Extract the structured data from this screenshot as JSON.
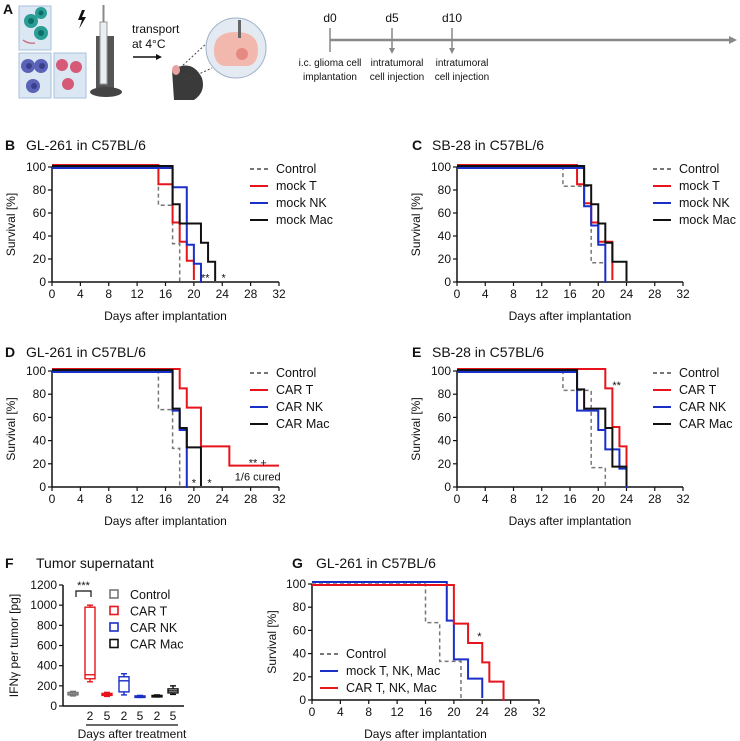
{
  "colors": {
    "control": "#777777",
    "red": "#e8141c",
    "blue": "#1a2ec8",
    "black": "#111111",
    "cellTeal": "#2a9d94",
    "cellBlue": "#5a63b8",
    "cellPink": "#d65a78",
    "brain": "#f2b8ae"
  },
  "panelA": {
    "letter": "A",
    "transport_line1": "transport",
    "transport_line2": "at 4°C",
    "timeline": {
      "days": [
        "d0",
        "d5",
        "d10"
      ],
      "events": [
        [
          "i.c. glioma cell",
          "implantation"
        ],
        [
          "intratumoral",
          "cell injection"
        ],
        [
          "intratumoral",
          "cell injection"
        ]
      ]
    }
  },
  "chart_data": [
    {
      "panel": "B",
      "type": "line",
      "subtype": "kaplan-meier",
      "title": "GL-261 in C57BL/6",
      "xlabel": "Days after implantation",
      "ylabel": "Survival [%]",
      "xlim": [
        0,
        32
      ],
      "ylim": [
        0,
        100
      ],
      "xticks": [
        0,
        4,
        8,
        12,
        16,
        20,
        24,
        28,
        32
      ],
      "yticks": [
        0,
        20,
        40,
        60,
        80,
        100
      ],
      "legend_position": "right",
      "series": [
        {
          "name": "Control",
          "color": "#777777",
          "dashed": true,
          "steps": [
            [
              0,
              100
            ],
            [
              15,
              66.7
            ],
            [
              17,
              33.3
            ],
            [
              18,
              0
            ]
          ]
        },
        {
          "name": "mock T",
          "color": "#e8141c",
          "steps": [
            [
              0,
              100
            ],
            [
              15,
              83.3
            ],
            [
              17,
              50
            ],
            [
              18,
              33.3
            ],
            [
              19,
              16.7
            ],
            [
              20,
              0
            ]
          ]
        },
        {
          "name": "mock NK",
          "color": "#1a2ec8",
          "steps": [
            [
              0,
              100
            ],
            [
              17,
              83.3
            ],
            [
              19,
              33.3
            ],
            [
              20,
              16.7
            ],
            [
              21,
              0
            ]
          ]
        },
        {
          "name": "mock Mac",
          "color": "#111111",
          "steps": [
            [
              0,
              100
            ],
            [
              17,
              66.7
            ],
            [
              18,
              50
            ],
            [
              21,
              33.3
            ],
            [
              22,
              16.7
            ],
            [
              23,
              0
            ]
          ]
        }
      ],
      "annotations": [
        {
          "text": "**",
          "x": 21.6,
          "y": 4
        },
        {
          "text": "*",
          "x": 24.2,
          "y": 4
        }
      ]
    },
    {
      "panel": "C",
      "type": "line",
      "subtype": "kaplan-meier",
      "title": "SB-28 in C57BL/6",
      "xlabel": "Days after implantation",
      "ylabel": "Survival [%]",
      "xlim": [
        0,
        32
      ],
      "ylim": [
        0,
        100
      ],
      "xticks": [
        0,
        4,
        8,
        12,
        16,
        20,
        24,
        28,
        32
      ],
      "yticks": [
        0,
        20,
        40,
        60,
        80,
        100
      ],
      "legend_position": "right",
      "series": [
        {
          "name": "Control",
          "color": "#777777",
          "dashed": true,
          "steps": [
            [
              0,
              100
            ],
            [
              15,
              83.3
            ],
            [
              19,
              16.7
            ],
            [
              21,
              0
            ]
          ]
        },
        {
          "name": "mock T",
          "color": "#e8141c",
          "steps": [
            [
              0,
              100
            ],
            [
              17,
              83.3
            ],
            [
              18,
              66.7
            ],
            [
              19,
              50
            ],
            [
              20,
              33.3
            ],
            [
              22,
              0
            ]
          ]
        },
        {
          "name": "mock NK",
          "color": "#1a2ec8",
          "steps": [
            [
              0,
              100
            ],
            [
              18,
              66.7
            ],
            [
              19,
              50
            ],
            [
              20,
              33.3
            ],
            [
              21,
              0
            ]
          ]
        },
        {
          "name": "mock Mac",
          "color": "#111111",
          "steps": [
            [
              0,
              100
            ],
            [
              18,
              83.3
            ],
            [
              19,
              66.7
            ],
            [
              20,
              50
            ],
            [
              21,
              33.3
            ],
            [
              22,
              16.7
            ],
            [
              24,
              0
            ]
          ]
        }
      ],
      "annotations": []
    },
    {
      "panel": "D",
      "type": "line",
      "subtype": "kaplan-meier",
      "title": "GL-261 in C57BL/6",
      "xlabel": "Days after implantation",
      "ylabel": "Survival [%]",
      "xlim": [
        0,
        32
      ],
      "ylim": [
        0,
        100
      ],
      "xticks": [
        0,
        4,
        8,
        12,
        16,
        20,
        24,
        28,
        32
      ],
      "yticks": [
        0,
        20,
        40,
        60,
        80,
        100
      ],
      "legend_position": "right",
      "series": [
        {
          "name": "Control",
          "color": "#777777",
          "dashed": true,
          "steps": [
            [
              0,
              100
            ],
            [
              15,
              66.7
            ],
            [
              17,
              33.3
            ],
            [
              18,
              0
            ]
          ]
        },
        {
          "name": "CAR T",
          "color": "#e8141c",
          "steps": [
            [
              0,
              100
            ],
            [
              18,
              83.3
            ],
            [
              19,
              66.7
            ],
            [
              21,
              33.3
            ],
            [
              25,
              16.7
            ],
            [
              32,
              16.7
            ]
          ]
        },
        {
          "name": "CAR NK",
          "color": "#1a2ec8",
          "steps": [
            [
              0,
              100
            ],
            [
              17,
              66.7
            ],
            [
              18,
              50
            ],
            [
              19,
              0
            ]
          ]
        },
        {
          "name": "CAR Mac",
          "color": "#111111",
          "steps": [
            [
              0,
              100
            ],
            [
              17,
              66.7
            ],
            [
              18,
              50
            ],
            [
              19,
              33.3
            ],
            [
              21,
              0
            ]
          ]
        }
      ],
      "annotations": [
        {
          "text": "*",
          "x": 20,
          "y": 4
        },
        {
          "text": "*",
          "x": 22.2,
          "y": 4
        },
        {
          "text": "** +",
          "x": 29,
          "y": 21
        },
        {
          "text": "1/6 cured",
          "x": 29,
          "y": 9
        }
      ]
    },
    {
      "panel": "E",
      "type": "line",
      "subtype": "kaplan-meier",
      "title": "SB-28 in C57BL/6",
      "xlabel": "Days after implantation",
      "ylabel": "Survival [%]",
      "xlim": [
        0,
        32
      ],
      "ylim": [
        0,
        100
      ],
      "xticks": [
        0,
        4,
        8,
        12,
        16,
        20,
        24,
        28,
        32
      ],
      "yticks": [
        0,
        20,
        40,
        60,
        80,
        100
      ],
      "legend_position": "right",
      "series": [
        {
          "name": "Control",
          "color": "#777777",
          "dashed": true,
          "steps": [
            [
              0,
              100
            ],
            [
              15,
              83.3
            ],
            [
              19,
              16.7
            ],
            [
              21,
              0
            ]
          ]
        },
        {
          "name": "CAR T",
          "color": "#e8141c",
          "steps": [
            [
              0,
              100
            ],
            [
              21,
              83.3
            ],
            [
              22,
              50
            ],
            [
              23,
              33.3
            ],
            [
              24,
              0
            ]
          ]
        },
        {
          "name": "CAR NK",
          "color": "#1a2ec8",
          "steps": [
            [
              0,
              100
            ],
            [
              17,
              66.7
            ],
            [
              20,
              50
            ],
            [
              21,
              33.3
            ],
            [
              23,
              16.7
            ],
            [
              24,
              0
            ]
          ]
        },
        {
          "name": "CAR Mac",
          "color": "#111111",
          "steps": [
            [
              0,
              100
            ],
            [
              17,
              83.3
            ],
            [
              18,
              66.7
            ],
            [
              21,
              50
            ],
            [
              22,
              16.7
            ],
            [
              24,
              0
            ]
          ]
        }
      ],
      "annotations": [
        {
          "text": "**",
          "x": 22.6,
          "y": 88
        }
      ]
    },
    {
      "panel": "F",
      "type": "box",
      "title": "Tumor supernatant",
      "xlabel": "Days after treatment",
      "ylabel": "IFNγ per tumor [pg]",
      "ylim": [
        0,
        1200
      ],
      "yticks": [
        0,
        200,
        400,
        600,
        800,
        1000,
        1200
      ],
      "legend_position": "right",
      "groups": [
        {
          "name": "Control",
          "color": "#777777",
          "boxes": [
            {
              "day": "",
              "min": 100,
              "q1": 110,
              "median": 120,
              "q3": 135,
              "max": 145
            }
          ]
        },
        {
          "name": "CAR T",
          "color": "#e8141c",
          "boxes": [
            {
              "day": "2",
              "min": 240,
              "q1": 270,
              "median": 310,
              "q3": 980,
              "max": 1000
            },
            {
              "day": "5",
              "min": 95,
              "q1": 105,
              "median": 115,
              "q3": 125,
              "max": 135
            }
          ]
        },
        {
          "name": "CAR NK",
          "color": "#1a2ec8",
          "boxes": [
            {
              "day": "2",
              "min": 110,
              "q1": 140,
              "median": 250,
              "q3": 290,
              "max": 320
            },
            {
              "day": "5",
              "min": 85,
              "q1": 90,
              "median": 95,
              "q3": 100,
              "max": 105
            }
          ]
        },
        {
          "name": "CAR Mac",
          "color": "#111111",
          "boxes": [
            {
              "day": "2",
              "min": 90,
              "q1": 95,
              "median": 100,
              "q3": 105,
              "max": 110
            },
            {
              "day": "5",
              "min": 115,
              "q1": 130,
              "median": 150,
              "q3": 170,
              "max": 200
            }
          ]
        }
      ],
      "annotations": [
        {
          "text": "***"
        }
      ]
    },
    {
      "panel": "G",
      "type": "line",
      "subtype": "kaplan-meier",
      "title": "GL-261 in C57BL/6",
      "xlabel": "Days after implantation",
      "ylabel": "Survival [%]",
      "xlim": [
        0,
        32
      ],
      "ylim": [
        0,
        100
      ],
      "xticks": [
        0,
        4,
        8,
        12,
        16,
        20,
        24,
        28,
        32
      ],
      "yticks": [
        0,
        20,
        40,
        60,
        80,
        100
      ],
      "legend_position": "bottom-left",
      "series": [
        {
          "name": "Control",
          "color": "#777777",
          "dashed": true,
          "steps": [
            [
              0,
              100
            ],
            [
              16,
              66.7
            ],
            [
              18,
              33.3
            ],
            [
              21,
              0
            ]
          ]
        },
        {
          "name": "mock T, NK, Mac",
          "color": "#1a2ec8",
          "steps": [
            [
              0,
              100
            ],
            [
              19,
              66.7
            ],
            [
              20,
              33.3
            ],
            [
              22,
              16.7
            ],
            [
              24,
              0
            ]
          ]
        },
        {
          "name": "CAR T, NK, Mac",
          "color": "#e8141c",
          "steps": [
            [
              0,
              100
            ],
            [
              20,
              66.7
            ],
            [
              22,
              50
            ],
            [
              24,
              33.3
            ],
            [
              25,
              16.7
            ],
            [
              27,
              0
            ]
          ]
        }
      ],
      "annotations": [
        {
          "text": "*",
          "x": 23.6,
          "y": 55
        }
      ]
    }
  ]
}
